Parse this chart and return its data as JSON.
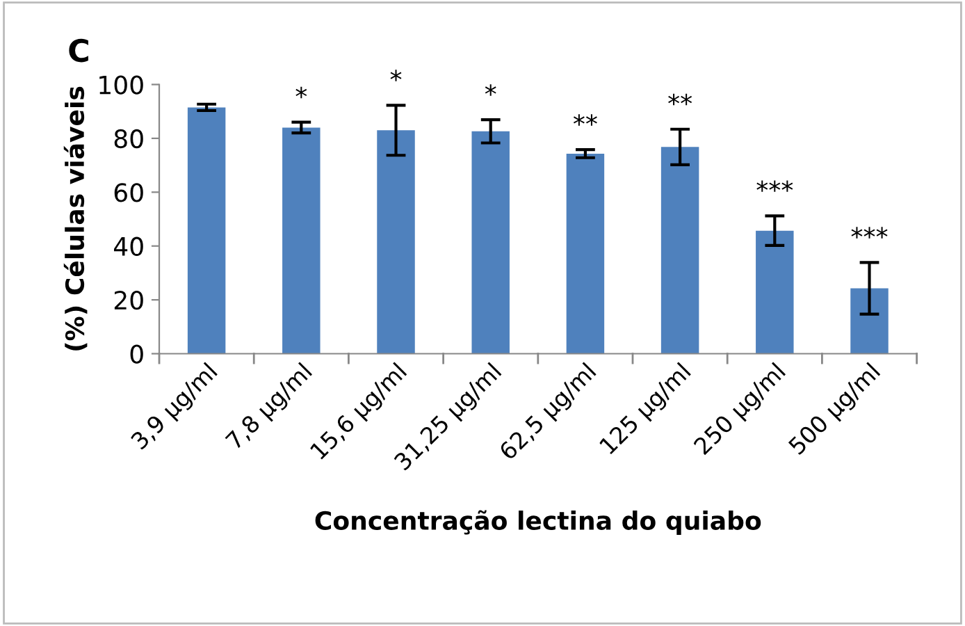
{
  "chart_data": {
    "type": "bar",
    "xlabel": "Concentração lectina do quiabo",
    "ylabel": "(%) Células viáveis",
    "categories": [
      "3,9 µg/ml",
      "7,8 µg/ml",
      "15,6 µg/ml",
      "31,25 µg/ml",
      "62,5 µg/ml",
      "125 µg/ml",
      "250 µg/ml",
      "500 µg/ml"
    ],
    "values": [
      91.5,
      84,
      83,
      82.6,
      74.3,
      76.8,
      45.7,
      24.3
    ],
    "errors": [
      1.2,
      2,
      9.3,
      4.3,
      1.5,
      6.6,
      5.5,
      9.6
    ],
    "color": "#4f81bd",
    "ylim": [
      0,
      100
    ],
    "yticks": [
      0,
      20,
      40,
      60,
      80,
      100
    ],
    "grid": false,
    "annotations": [
      "C",
      "*",
      "*",
      "*",
      "**",
      "**",
      "***",
      "***"
    ]
  }
}
